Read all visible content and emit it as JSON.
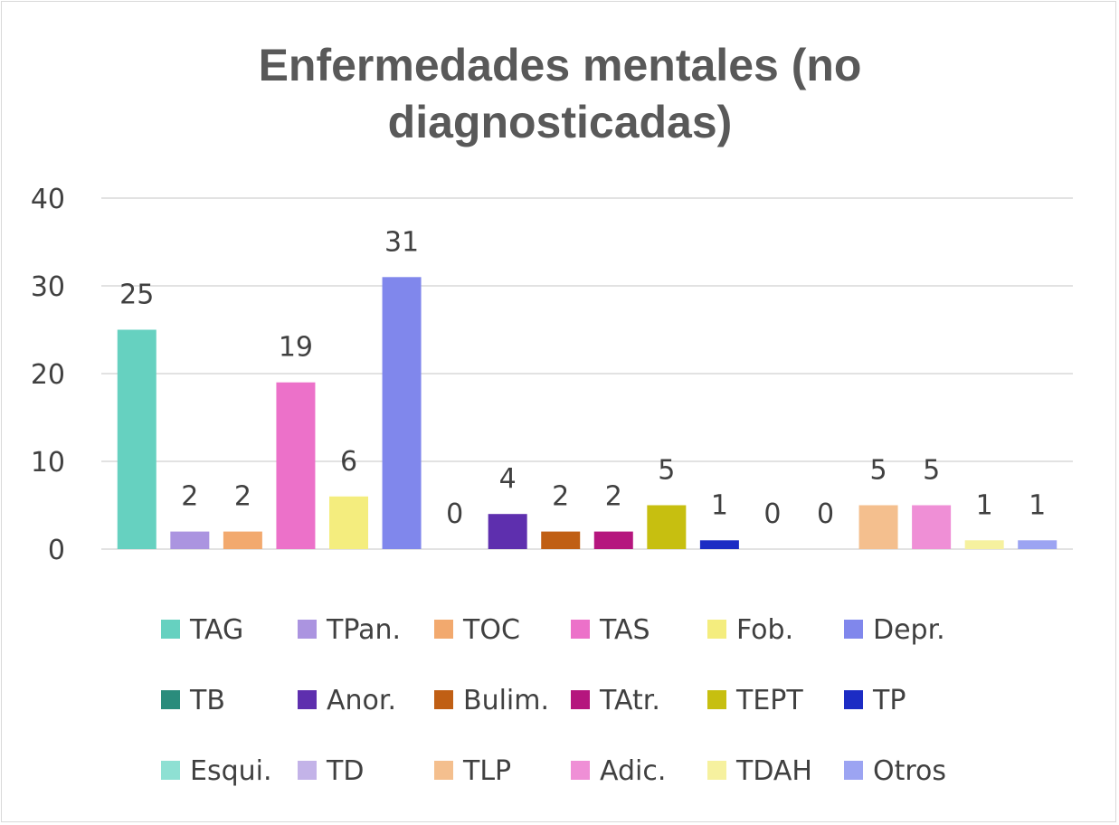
{
  "chart_data": {
    "type": "bar",
    "title_lines": [
      "Enfermedades mentales (no",
      "diagnosticadas)"
    ],
    "xlabel": "",
    "ylabel": "",
    "ylim": [
      0,
      40
    ],
    "yticks": [
      0,
      10,
      20,
      30,
      40
    ],
    "y_tick_labels": [
      "0",
      "10",
      "20",
      "30",
      "40"
    ],
    "grid": true,
    "legend_position": "bottom",
    "series": [
      {
        "name": "TAG",
        "value": 25,
        "label": "25",
        "color": "#66d1c0"
      },
      {
        "name": "TPan.",
        "value": 2,
        "label": "2",
        "color": "#ab94e0"
      },
      {
        "name": "TOC",
        "value": 2,
        "label": "2",
        "color": "#f2a96e"
      },
      {
        "name": "TAS",
        "value": 19,
        "label": "19",
        "color": "#ec71c9"
      },
      {
        "name": "Fob.",
        "value": 6,
        "label": "6",
        "color": "#f4ed7e"
      },
      {
        "name": "Depr.",
        "value": 31,
        "label": "31",
        "color": "#8087ec"
      },
      {
        "name": "TB",
        "value": 0,
        "label": "0",
        "color": "#2a8c7c"
      },
      {
        "name": "Anor.",
        "value": 4,
        "label": "4",
        "color": "#5e2fae"
      },
      {
        "name": "Bulim.",
        "value": 2,
        "label": "2",
        "color": "#c05f14"
      },
      {
        "name": "TAtr.",
        "value": 2,
        "label": "2",
        "color": "#b5167e"
      },
      {
        "name": "TEPT",
        "value": 5,
        "label": "5",
        "color": "#c7bf10"
      },
      {
        "name": "TP",
        "value": 1,
        "label": "1",
        "color": "#1c2cc4"
      },
      {
        "name": "Esqui.",
        "value": 0,
        "label": "0",
        "color": "#8ee0d3"
      },
      {
        "name": "TD",
        "value": 0,
        "label": "0",
        "color": "#c3b3e8"
      },
      {
        "name": "TLP",
        "value": 5,
        "label": "5",
        "color": "#f4bf8e"
      },
      {
        "name": "Adic.",
        "value": 5,
        "label": "5",
        "color": "#ef8fd6"
      },
      {
        "name": "TDAH",
        "value": 1,
        "label": "1",
        "color": "#f6f19f"
      },
      {
        "name": "Otros",
        "value": 1,
        "label": "1",
        "color": "#9ca4f2"
      }
    ]
  }
}
